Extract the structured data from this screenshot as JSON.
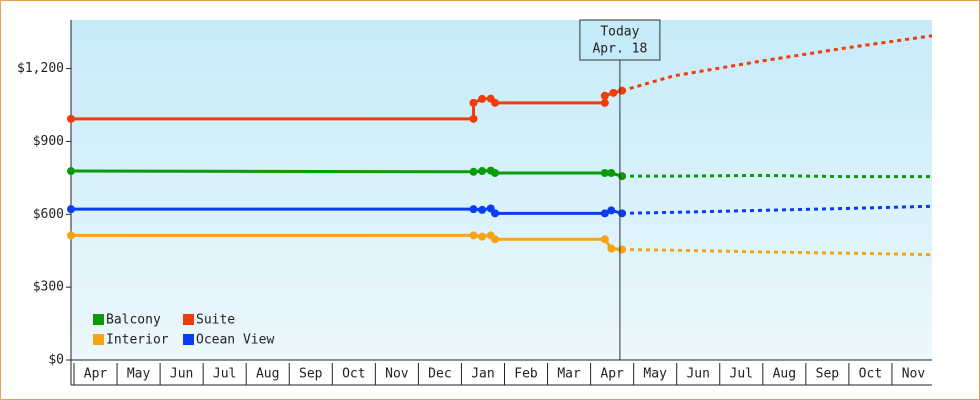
{
  "chart_data": {
    "type": "line",
    "categories": [
      "Apr",
      "May",
      "Jun",
      "Jul",
      "Aug",
      "Sep",
      "Oct",
      "Nov",
      "Dec",
      "Jan",
      "Feb",
      "Mar",
      "Apr",
      "May",
      "Jun",
      "Jul",
      "Aug",
      "Sep",
      "Oct",
      "Nov"
    ],
    "xlim": [
      0,
      20
    ],
    "ylim": [
      0,
      1400
    ],
    "yticks": [
      0,
      {
        "value": 300,
        "label": "$300"
      },
      {
        "value": 600,
        "label": "$600"
      },
      {
        "value": 900,
        "label": "$900"
      },
      {
        "value": 1200,
        "label": "$1,200"
      }
    ],
    "yticks_zero_label": "$0",
    "legend": "lower left",
    "annotation": {
      "x": 12.75,
      "lines": [
        "Today",
        "Apr. 18"
      ]
    },
    "series": [
      {
        "name": "Balcony",
        "color": "#0a9a0a",
        "x": [
          0,
          9.35,
          9.55,
          9.75,
          9.85,
          12.4,
          12.55,
          12.8
        ],
        "values": [
          778,
          775,
          778,
          780,
          770,
          770,
          770,
          757
        ],
        "forecast_x": [
          12.8,
          14,
          16,
          18,
          20
        ],
        "forecast_values": [
          757,
          757,
          760,
          755,
          755
        ]
      },
      {
        "name": "Suite",
        "color": "#f03c0a",
        "x": [
          0,
          9.35,
          9.35,
          9.55,
          9.75,
          9.85,
          12.4,
          12.4,
          12.6,
          12.8
        ],
        "values": [
          993,
          993,
          1059,
          1075,
          1076,
          1059,
          1059,
          1088,
          1100,
          1109
        ],
        "forecast_x": [
          12.8,
          14,
          16,
          18,
          20
        ],
        "forecast_values": [
          1109,
          1170,
          1230,
          1285,
          1335
        ]
      },
      {
        "name": "Interior",
        "color": "#f5a514",
        "x": [
          0,
          9.35,
          9.55,
          9.75,
          9.85,
          12.4,
          12.55,
          12.8
        ],
        "values": [
          513,
          513,
          508,
          513,
          497,
          497,
          459,
          455
        ],
        "forecast_x": [
          12.8,
          14,
          16,
          18,
          20
        ],
        "forecast_values": [
          455,
          452,
          445,
          440,
          434
        ]
      },
      {
        "name": "Ocean View",
        "color": "#0a3cf0",
        "x": [
          0,
          9.35,
          9.55,
          9.75,
          9.85,
          12.4,
          12.55,
          12.8
        ],
        "values": [
          621,
          621,
          618,
          624,
          604,
          604,
          616,
          604
        ],
        "forecast_x": [
          12.8,
          14,
          16,
          18,
          20
        ],
        "forecast_values": [
          604,
          608,
          616,
          624,
          633
        ]
      }
    ]
  }
}
